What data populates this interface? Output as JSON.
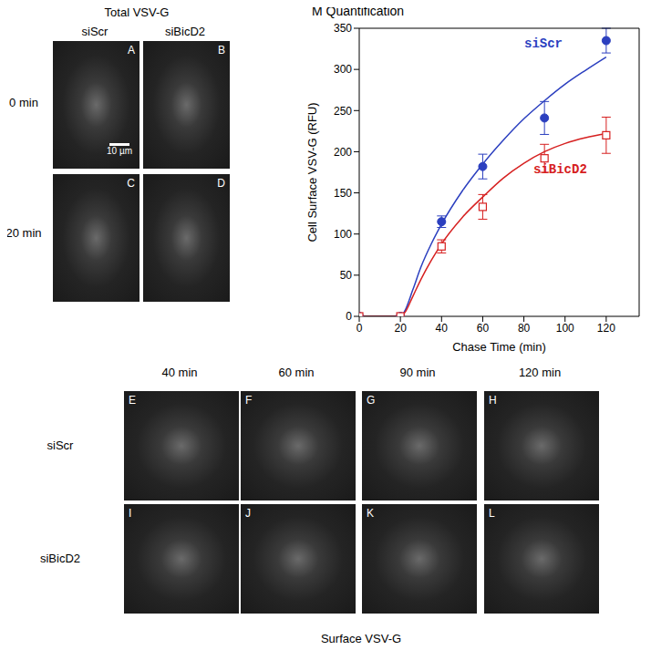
{
  "figure": {
    "top_left": {
      "title": "Total VSV-G",
      "columns": [
        "siScr",
        "siBicD2"
      ],
      "rows": [
        "0 min",
        "20 min"
      ],
      "panels": [
        "A",
        "B",
        "C",
        "D"
      ],
      "scale_bar": "10 µm"
    },
    "bottom": {
      "columns": [
        "40 min",
        "60 min",
        "90 min",
        "120 min"
      ],
      "rows": [
        "siScr",
        "siBicD2"
      ],
      "panels": [
        "E",
        "F",
        "G",
        "H",
        "I",
        "J",
        "K",
        "L"
      ],
      "caption": "Surface VSV-G"
    }
  },
  "chart_data": {
    "type": "scatter",
    "title": "M Quantification",
    "x_label": "Chase Time (min)",
    "y_label": "Cell Surface VSV-G (RFU)",
    "x": [
      0,
      20,
      40,
      60,
      90,
      120
    ],
    "xlim": [
      0,
      136
    ],
    "xticks": [
      0,
      20,
      40,
      60,
      80,
      100,
      120
    ],
    "ylim": [
      0,
      350
    ],
    "yticks": [
      0,
      50,
      100,
      150,
      200,
      250,
      300,
      350
    ],
    "grid": false,
    "series": [
      {
        "name": "siScr",
        "color": "#2b3fbf",
        "marker": "circle",
        "values": [
          0,
          0,
          115,
          182,
          241,
          335
        ],
        "error": [
          0,
          0,
          7,
          15,
          20,
          15
        ],
        "fit_x": [
          0,
          20,
          22,
          26,
          30,
          35,
          40,
          50,
          60,
          70,
          80,
          90,
          100,
          110,
          120
        ],
        "fit_values": [
          0,
          0,
          6,
          32,
          60,
          88,
          112,
          152,
          185,
          214,
          240,
          262,
          282,
          299,
          315
        ]
      },
      {
        "name": "siBicD2",
        "color": "#d62020",
        "marker": "square",
        "values": [
          0,
          0,
          85,
          133,
          192,
          220
        ],
        "error": [
          0,
          0,
          8,
          15,
          17,
          22
        ],
        "fit_x": [
          0,
          20,
          22,
          26,
          30,
          35,
          40,
          50,
          60,
          70,
          80,
          90,
          100,
          110,
          120
        ],
        "fit_values": [
          0,
          0,
          4,
          24,
          45,
          68,
          88,
          120,
          145,
          168,
          186,
          200,
          210,
          217,
          222
        ]
      }
    ]
  }
}
